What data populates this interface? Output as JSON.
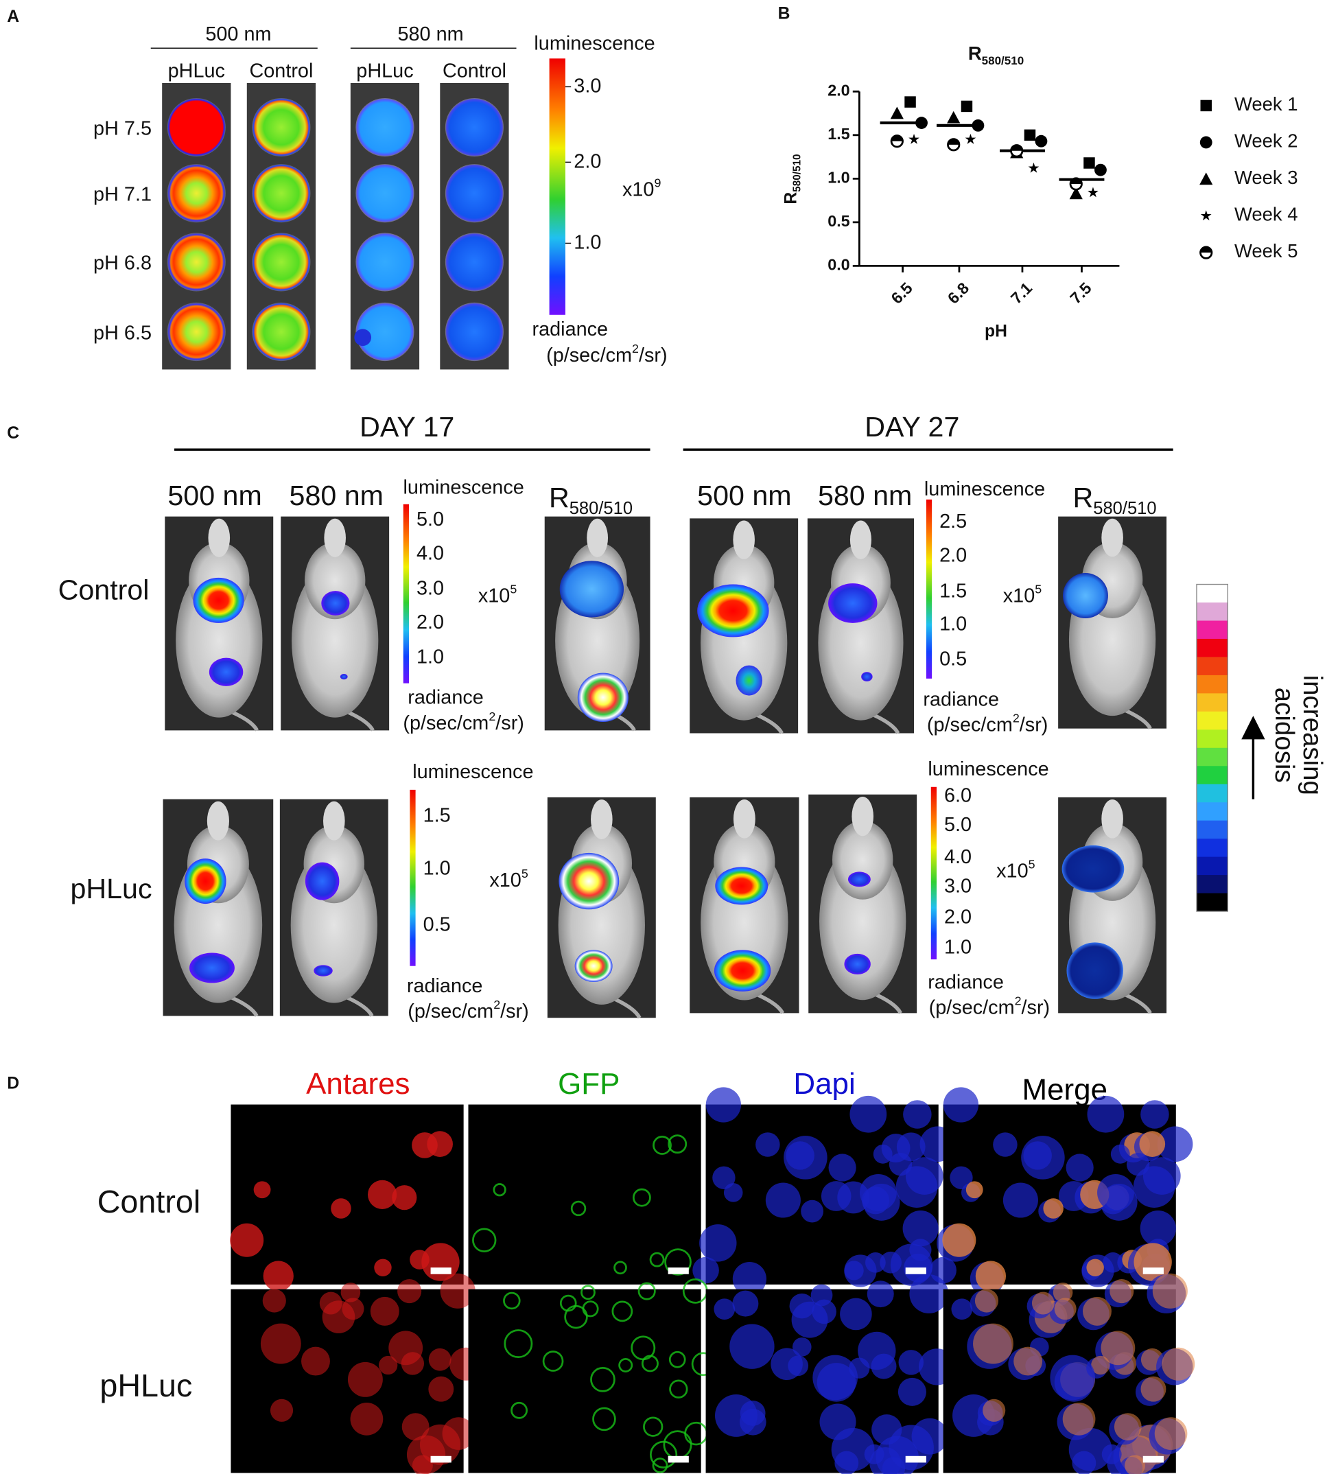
{
  "panel_labels": [
    "A",
    "B",
    "C",
    "D"
  ],
  "panel_a": {
    "wavelengths": [
      "500 nm",
      "580 nm"
    ],
    "columns": [
      "pHLuc",
      "Control",
      "pHLuc",
      "Control"
    ],
    "rows": [
      "pH 7.5",
      "pH 7.1",
      "pH 6.8",
      "pH 6.5"
    ],
    "scale": {
      "title": "luminescence",
      "ticks": [
        "3.0",
        "2.0",
        "1.0"
      ],
      "multiplier": [
        "x10",
        "9"
      ],
      "unit_name": "radiance",
      "unit": [
        "(p/sec/cm",
        "2",
        "/sr)"
      ]
    }
  },
  "chart_data": {
    "type": "scatter",
    "title": [
      "R",
      "580/510"
    ],
    "y_label": [
      "R",
      "580/510"
    ],
    "x_label": "pH",
    "categories": [
      "6.5",
      "6.8",
      "7.1",
      "7.5"
    ],
    "series": [
      {
        "name": "Week 1",
        "marker": "square",
        "color": "#000000",
        "values": [
          1.88,
          1.83,
          1.5,
          1.18
        ]
      },
      {
        "name": "Week 2",
        "marker": "circle",
        "color": "#000000",
        "values": [
          1.64,
          1.61,
          1.43,
          1.1
        ]
      },
      {
        "name": "Week 3",
        "marker": "triangle",
        "color": "#000000",
        "values": [
          1.75,
          1.7,
          1.3,
          0.83
        ]
      },
      {
        "name": "Week 4",
        "marker": "star",
        "color": "#000000",
        "values": [
          1.45,
          1.45,
          1.12,
          0.84
        ]
      },
      {
        "name": "Week 5",
        "marker": "half-circle",
        "color": "#000000",
        "values": [
          1.43,
          1.39,
          1.32,
          0.94
        ]
      }
    ],
    "means": [
      1.64,
      1.61,
      1.32,
      0.99
    ],
    "ylim": [
      0,
      2.0
    ],
    "yticks": [
      {
        "value": 0,
        "label": "0.0"
      },
      {
        "value": 0.5,
        "label": "0.5"
      },
      {
        "value": 1.0,
        "label": "1.0"
      },
      {
        "value": 1.5,
        "label": "1.5"
      },
      {
        "value": 2.0,
        "label": "2.0"
      }
    ]
  },
  "panel_c": {
    "days": [
      "DAY 17",
      "DAY 27"
    ],
    "wavelengths": [
      "500 nm",
      "580 nm"
    ],
    "ratio": [
      "R",
      "580/510"
    ],
    "rows": [
      "Control",
      "pHLuc"
    ],
    "scales": [
      {
        "title": "luminescence",
        "ticks": [
          "5.0",
          "4.0",
          "3.0",
          "2.0",
          "1.0"
        ],
        "multiplier": [
          "x10",
          "5"
        ],
        "unit_name": "radiance",
        "unit": [
          "(p/sec/cm",
          "2",
          "/sr)"
        ]
      },
      {
        "title": "luminescence",
        "ticks": [
          "2.5",
          "2.0",
          "1.5",
          "1.0",
          "0.5"
        ],
        "multiplier": [
          "x10",
          "5"
        ],
        "unit_name": "radiance",
        "unit": [
          "(p/sec/cm",
          "2",
          "/sr)"
        ]
      },
      {
        "title": "luminescence",
        "ticks": [
          "1.5",
          "1.0",
          "0.5"
        ],
        "multiplier": [
          "x10",
          "5"
        ],
        "unit_name": "radiance",
        "unit": [
          "(p/sec/cm",
          "2",
          "/sr)"
        ]
      },
      {
        "title": "luminescence",
        "ticks": [
          "6.0",
          "5.0",
          "4.0",
          "3.0",
          "2.0",
          "1.0"
        ],
        "multiplier": [
          "x10",
          "5"
        ],
        "unit_name": "radiance",
        "unit": [
          "(p/sec/cm",
          "2",
          "/sr)"
        ]
      }
    ],
    "acidosis": [
      "increasing",
      "acidosis"
    ]
  },
  "panel_d": {
    "channels": [
      "Antares",
      "GFP",
      "Dapi",
      "Merge"
    ],
    "rows": [
      "Control",
      "pHLuc"
    ]
  }
}
